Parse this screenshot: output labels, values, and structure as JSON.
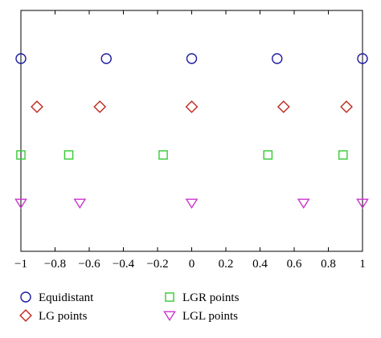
{
  "chart_data": {
    "type": "scatter",
    "title": "",
    "xlabel": "",
    "ylabel": "",
    "xlim": [
      -1,
      1
    ],
    "ylim": [
      0,
      5
    ],
    "grid": false,
    "legend_position": "bottom",
    "x_ticks": [
      -1,
      -0.8,
      -0.6,
      -0.4,
      -0.2,
      0,
      0.2,
      0.4,
      0.6,
      0.8,
      1
    ],
    "x_tick_labels": [
      "−1",
      "−0.8",
      "−0.6",
      "−0.4",
      "−0.2",
      "0",
      "0.2",
      "0.4",
      "0.6",
      "0.8",
      "1"
    ],
    "series": [
      {
        "name": "Equidistant",
        "marker": "circle",
        "color": "#1a1aa6",
        "y": 4,
        "x": [
          -1,
          -0.5,
          0,
          0.5,
          1
        ]
      },
      {
        "name": "LG points",
        "marker": "diamond",
        "color": "#c0281e",
        "y": 3,
        "x": [
          -0.906,
          -0.538,
          0,
          0.538,
          0.906
        ]
      },
      {
        "name": "LGR points",
        "marker": "square",
        "color": "#33cc33",
        "y": 2,
        "x": [
          -1,
          -0.72,
          -0.167,
          0.446,
          0.886
        ]
      },
      {
        "name": "LGL points",
        "marker": "triangle-down",
        "color": "#cc33cc",
        "y": 1,
        "x": [
          -1,
          -0.655,
          0,
          0.655,
          1
        ]
      }
    ]
  }
}
